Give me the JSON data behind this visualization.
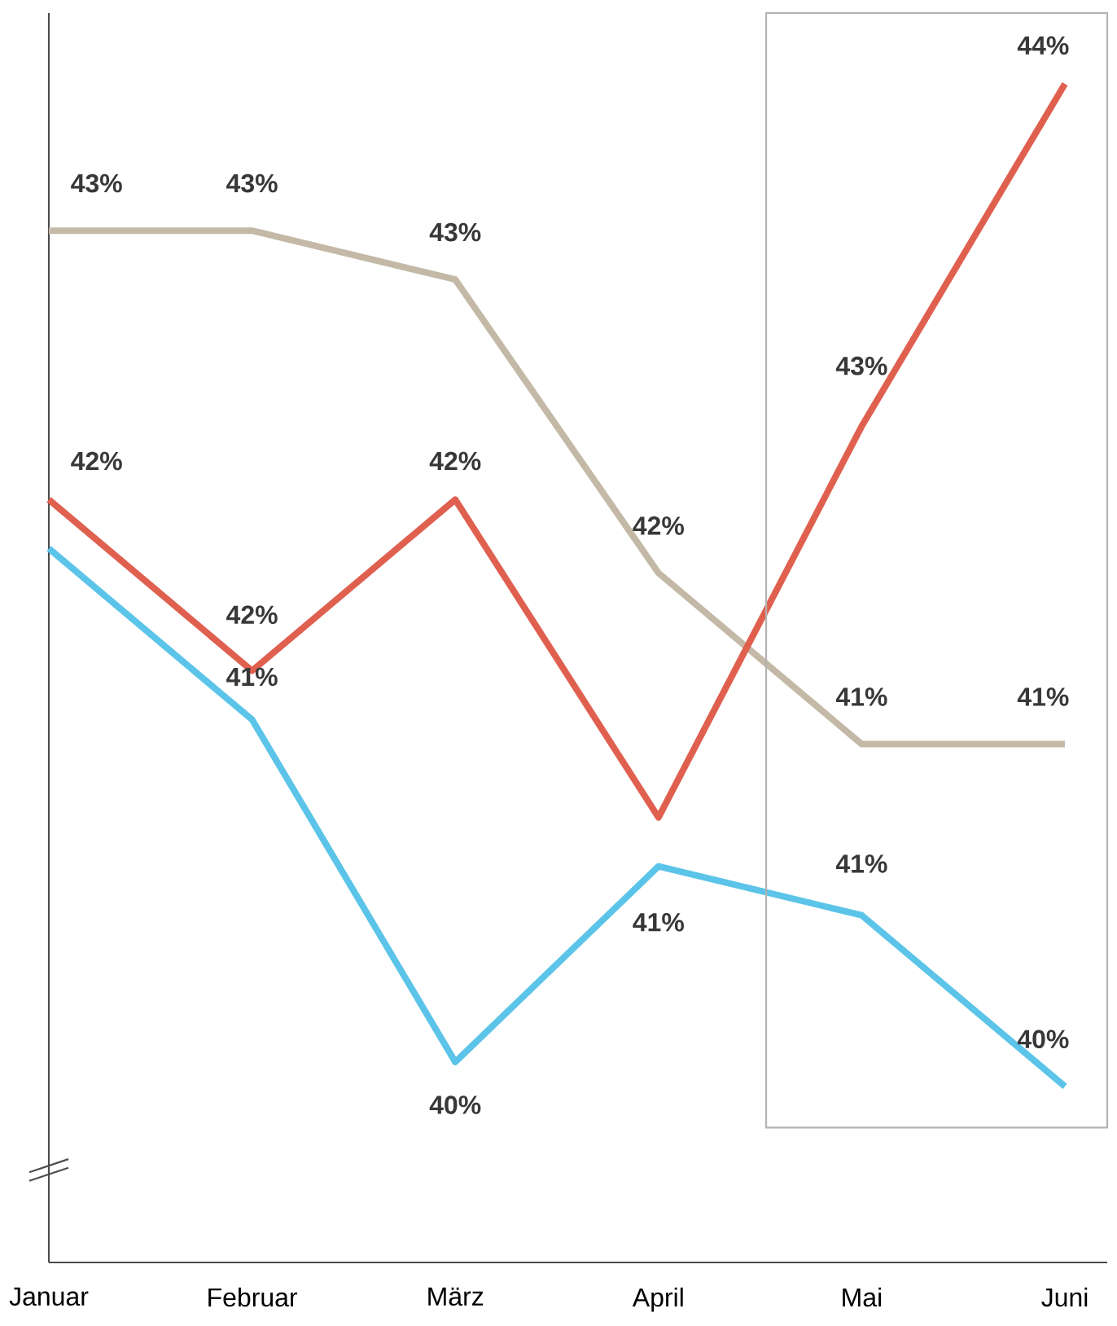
{
  "chart_data": {
    "type": "line",
    "categories": [
      "Januar",
      "Februar",
      "März",
      "April",
      "Mai",
      "Juni"
    ],
    "ylim": [
      39.18,
      44.29
    ],
    "tick_labels": "x",
    "series": [
      {
        "color": "#c4b9a6",
        "values": [
          43.4,
          43.4,
          43.2,
          42.0,
          41.3,
          41.3
        ],
        "value_labels": [
          "43%",
          "43%",
          "43%",
          "42%",
          "41%",
          "41%"
        ]
      },
      {
        "color": "#e0604f",
        "values": [
          42.3,
          41.6,
          42.3,
          41.0,
          42.6,
          44.0
        ],
        "value_labels": [
          "42%",
          "42%",
          "42%",
          null,
          "43%",
          "44%"
        ]
      },
      {
        "color": "#5bc4e8",
        "values": [
          42.1,
          41.4,
          40.0,
          40.8,
          40.6,
          39.9
        ],
        "value_labels": [
          null,
          "41%",
          "40%",
          "41%",
          "41%",
          "40%"
        ]
      }
    ],
    "marker": "none",
    "line_style": "solid"
  }
}
